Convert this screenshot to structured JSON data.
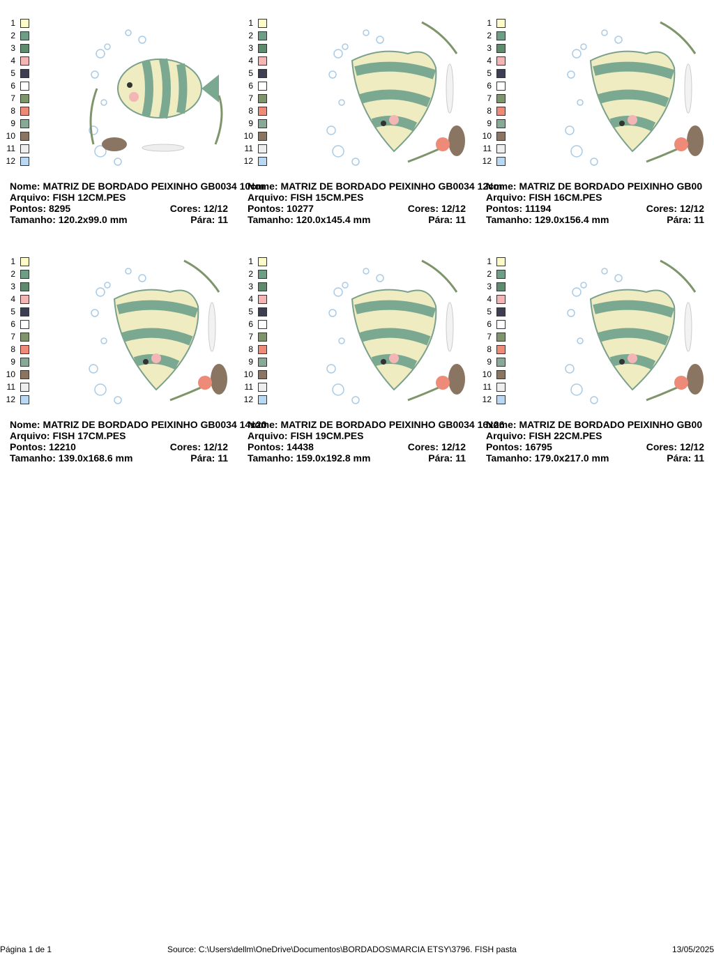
{
  "labels": {
    "name": "Nome:",
    "file": "Arquivo:",
    "stitches": "Pontos:",
    "colors": "Cores:",
    "size": "Tamanho:",
    "stops": "Pára:"
  },
  "palette": [
    {
      "number": "1",
      "color": "#fdfbc8"
    },
    {
      "number": "2",
      "color": "#6f9e86"
    },
    {
      "number": "3",
      "color": "#5e8a6e"
    },
    {
      "number": "4",
      "color": "#f4b5b5"
    },
    {
      "number": "5",
      "color": "#3e3e52"
    },
    {
      "number": "6",
      "color": "#ffffff"
    },
    {
      "number": "7",
      "color": "#7e946a"
    },
    {
      "number": "8",
      "color": "#ee8a78"
    },
    {
      "number": "9",
      "color": "#8aa898"
    },
    {
      "number": "10",
      "color": "#8a7562"
    },
    {
      "number": "11",
      "color": "#eeeeee"
    },
    {
      "number": "12",
      "color": "#b8d8f4"
    }
  ],
  "designs": [
    {
      "name": "MATRIZ DE BORDADO PEIXINHO GB0034 10cm",
      "file": "FISH 12CM.PES",
      "stitches": 8295,
      "colors": "12/12",
      "size": "120.2x99.0 mm",
      "stops": 11
    },
    {
      "name": "MATRIZ DE BORDADO PEIXINHO GB0034 12cm",
      "file": "FISH 15CM.PES",
      "stitches": 10277,
      "colors": "12/12",
      "size": "120.0x145.4 mm",
      "stops": 11
    },
    {
      "name": "MATRIZ DE BORDADO PEIXINHO GB00",
      "file": "FISH 16CM.PES",
      "stitches": 11194,
      "colors": "12/12",
      "size": "129.0x156.4 mm",
      "stops": 11
    },
    {
      "name": "MATRIZ DE BORDADO PEIXINHO GB0034 14x20",
      "file": "FISH 17CM.PES",
      "stitches": 12210,
      "colors": "12/12",
      "size": "139.0x168.6 mm",
      "stops": 11
    },
    {
      "name": "MATRIZ DE BORDADO PEIXINHO GB0034 16x26",
      "file": "FISH 19CM.PES",
      "stitches": 14438,
      "colors": "12/12",
      "size": "159.0x192.8 mm",
      "stops": 11
    },
    {
      "name": "MATRIZ DE BORDADO PEIXINHO GB00",
      "file": "FISH 22CM.PES",
      "stitches": 16795,
      "colors": "12/12",
      "size": "179.0x217.0 mm",
      "stops": 11
    }
  ],
  "footer": {
    "page": "Página 1 de 1",
    "source": "Source: C:\\Users\\dellm\\OneDrive\\Documentos\\BORDADOS\\MARCIA ETSY\\3796. FISH pasta",
    "date": "13/05/2025"
  }
}
